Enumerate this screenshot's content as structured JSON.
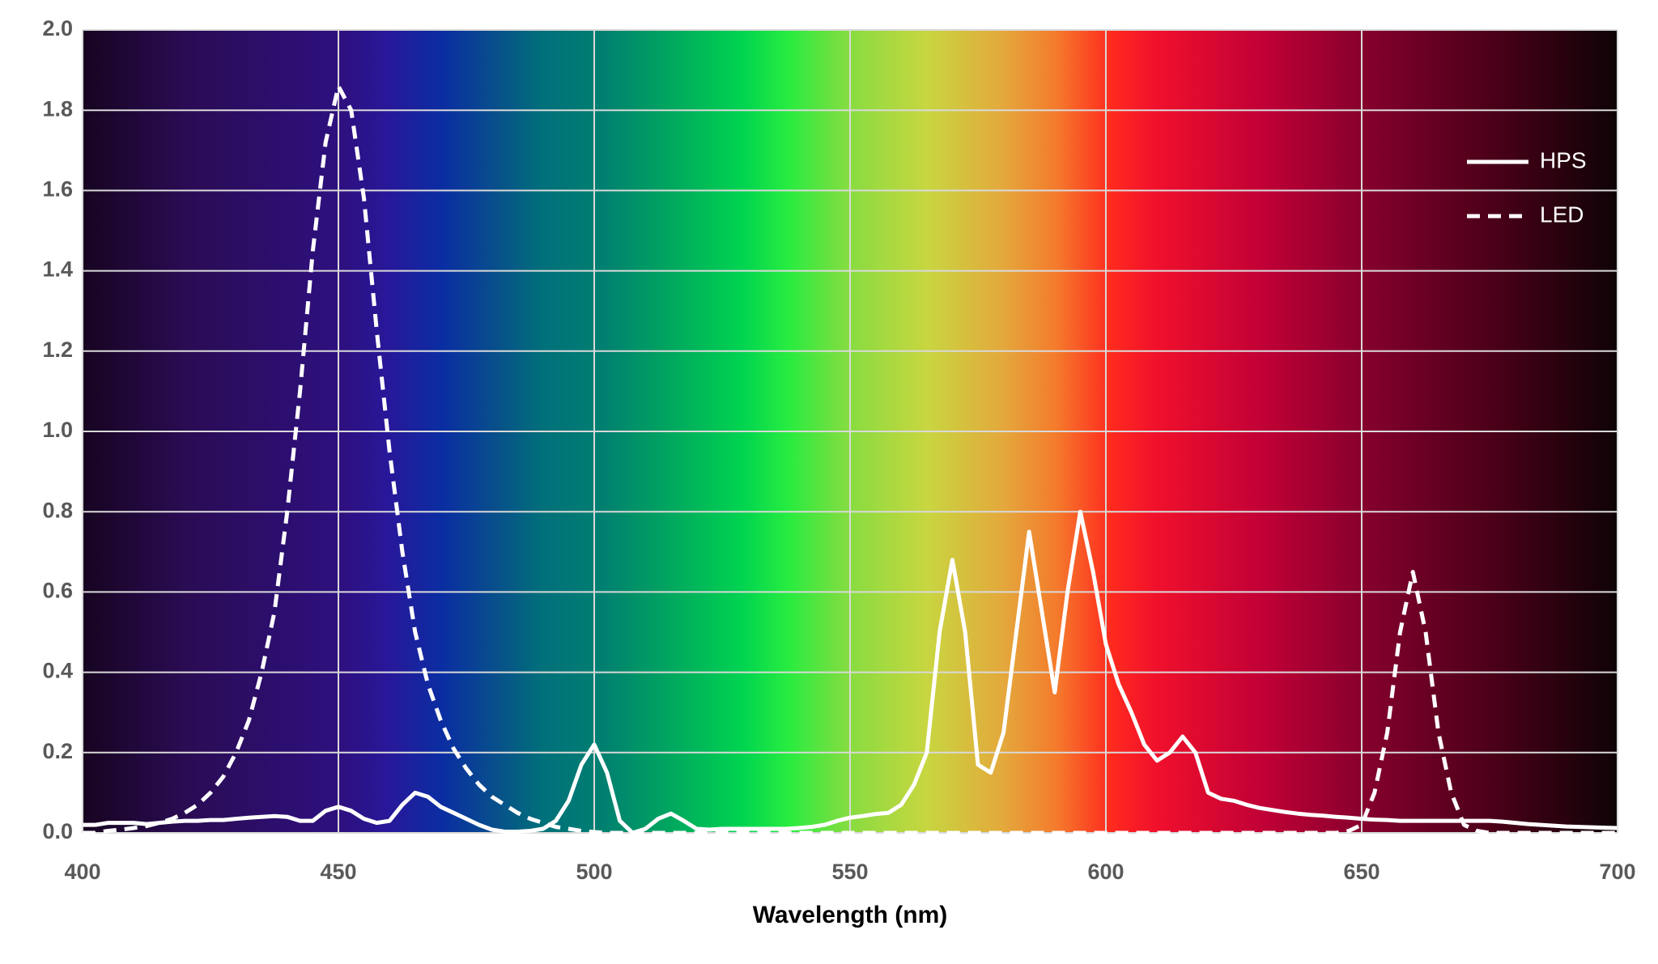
{
  "chart_data": {
    "type": "line",
    "x_label": "Wavelength (nm)",
    "x": [
      400,
      402.5,
      405,
      407.5,
      410,
      412.5,
      415,
      417.5,
      420,
      422.5,
      425,
      427.5,
      430,
      432.5,
      435,
      437.5,
      440,
      442.5,
      445,
      447.5,
      450,
      452.5,
      455,
      457.5,
      460,
      462.5,
      465,
      467.5,
      470,
      472.5,
      475,
      477.5,
      480,
      482.5,
      485,
      487.5,
      490,
      492.5,
      495,
      497.5,
      500,
      502.5,
      505,
      507.5,
      510,
      512.5,
      515,
      517.5,
      520,
      522.5,
      525,
      527.5,
      530,
      532.5,
      535,
      537.5,
      540,
      542.5,
      545,
      547.5,
      550,
      552.5,
      555,
      557.5,
      560,
      562.5,
      565,
      567.5,
      570,
      572.5,
      575,
      577.5,
      580,
      582.5,
      585,
      587.5,
      590,
      592.5,
      595,
      597.5,
      600,
      602.5,
      605,
      607.5,
      610,
      612.5,
      615,
      617.5,
      620,
      622.5,
      625,
      627.5,
      630,
      632.5,
      635,
      637.5,
      640,
      642.5,
      645,
      647.5,
      650,
      652.5,
      655,
      657.5,
      660,
      662.5,
      665,
      667.5,
      670,
      672.5,
      675,
      677.5,
      680,
      682.5,
      685,
      687.5,
      690,
      692.5,
      695,
      697.5,
      700
    ],
    "series": [
      {
        "name": "HPS",
        "color": "#ffffff",
        "dash": false,
        "values": [
          0.02,
          0.02,
          0.025,
          0.025,
          0.025,
          0.022,
          0.025,
          0.028,
          0.03,
          0.03,
          0.032,
          0.032,
          0.035,
          0.038,
          0.04,
          0.042,
          0.04,
          0.03,
          0.03,
          0.055,
          0.065,
          0.055,
          0.035,
          0.025,
          0.03,
          0.07,
          0.1,
          0.09,
          0.065,
          0.05,
          0.035,
          0.02,
          0.008,
          0.003,
          0.003,
          0.005,
          0.01,
          0.03,
          0.08,
          0.17,
          0.22,
          0.15,
          0.03,
          0,
          0.01,
          0.035,
          0.048,
          0.03,
          0.01,
          0.008,
          0.01,
          0.01,
          0.01,
          0.01,
          0.01,
          0.01,
          0.012,
          0.015,
          0.02,
          0.03,
          0.038,
          0.042,
          0.047,
          0.05,
          0.07,
          0.12,
          0.2,
          0.5,
          0.68,
          0.5,
          0.17,
          0.15,
          0.25,
          0.5,
          0.75,
          0.55,
          0.35,
          0.6,
          0.8,
          0.65,
          0.47,
          0.37,
          0.3,
          0.22,
          0.18,
          0.2,
          0.24,
          0.2,
          0.1,
          0.085,
          0.08,
          0.07,
          0.062,
          0.057,
          0.052,
          0.048,
          0.045,
          0.043,
          0.04,
          0.038,
          0.035,
          0.033,
          0.032,
          0.03,
          0.03,
          0.03,
          0.03,
          0.03,
          0.03,
          0.03,
          0.03,
          0.028,
          0.025,
          0.022,
          0.02,
          0.018,
          0.016,
          0.015,
          0.014,
          0.013,
          0.012
        ]
      },
      {
        "name": "LED",
        "color": "#ffffff",
        "dash": true,
        "values": [
          0,
          0,
          0.005,
          0.008,
          0.012,
          0.017,
          0.025,
          0.035,
          0.05,
          0.07,
          0.1,
          0.14,
          0.2,
          0.28,
          0.4,
          0.55,
          0.8,
          1.1,
          1.45,
          1.72,
          1.86,
          1.8,
          1.58,
          1.25,
          0.95,
          0.7,
          0.5,
          0.37,
          0.28,
          0.21,
          0.16,
          0.12,
          0.09,
          0.07,
          0.05,
          0.035,
          0.025,
          0.015,
          0.01,
          0.005,
          0.002,
          0,
          0,
          0,
          0,
          0,
          0,
          0,
          0,
          0,
          0,
          0,
          0,
          0,
          0,
          0,
          0,
          0,
          0,
          0,
          0,
          0,
          0,
          0,
          0,
          0,
          0,
          0,
          0,
          0,
          0,
          0,
          0,
          0,
          0,
          0,
          0,
          0,
          0,
          0,
          0,
          0,
          0,
          0,
          0,
          0,
          0,
          0,
          0,
          0,
          0,
          0,
          0,
          0,
          0,
          0,
          0,
          0,
          0,
          0.005,
          0.02,
          0.1,
          0.25,
          0.5,
          0.65,
          0.5,
          0.25,
          0.1,
          0.02,
          0.005,
          0,
          0,
          0,
          0,
          0,
          0,
          0,
          0,
          0,
          0,
          0
        ]
      }
    ],
    "xlim": [
      400,
      700
    ],
    "xticks": [
      400,
      450,
      500,
      550,
      600,
      650,
      700
    ],
    "ylim": [
      0,
      2
    ],
    "yticks": [
      {
        "value": 0,
        "label": "0.0"
      },
      0.2,
      0.4,
      0.6,
      0.8,
      {
        "value": 1,
        "label": "1.0"
      },
      1.2,
      1.4,
      1.6,
      1.8,
      {
        "value": 2,
        "label": "2.0"
      }
    ],
    "grid": true,
    "legend": "upper right"
  }
}
